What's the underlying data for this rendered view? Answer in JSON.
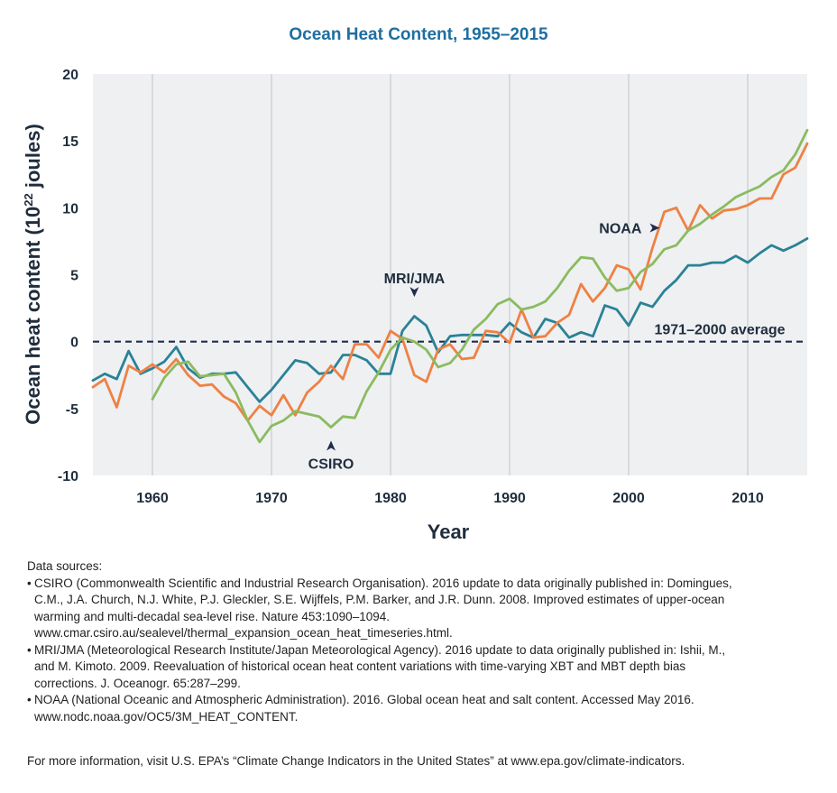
{
  "chart_data": {
    "type": "line",
    "title": "Ocean Heat Content, 1955–2015",
    "xlabel": "Year",
    "ylabel_main": "Ocean heat content (10",
    "ylabel_sup": "22",
    "ylabel_tail": " joules)",
    "xlim": [
      1955,
      2015
    ],
    "ylim": [
      -10,
      20
    ],
    "x_ticks": [
      1960,
      1970,
      1980,
      1990,
      2000,
      2010
    ],
    "y_ticks": [
      -10,
      -5,
      0,
      5,
      10,
      15,
      20
    ],
    "grid": "vertical",
    "reference_line": {
      "value": 0,
      "label": "1971–2000 average"
    },
    "annotations": [
      {
        "text": "NOAA",
        "arrow": "right",
        "x": 2002,
        "y": 8.5
      },
      {
        "text": "MRI/JMA",
        "arrow": "down",
        "x": 1982,
        "y": 3
      },
      {
        "text": "CSIRO",
        "arrow": "up",
        "x": 1975,
        "y": -7
      }
    ],
    "series": [
      {
        "name": "MRI/JMA",
        "color": "#2a8296",
        "x": [
          1955,
          1956,
          1957,
          1958,
          1959,
          1960,
          1961,
          1962,
          1963,
          1964,
          1965,
          1966,
          1967,
          1968,
          1969,
          1970,
          1971,
          1972,
          1973,
          1974,
          1975,
          1976,
          1977,
          1978,
          1979,
          1980,
          1981,
          1982,
          1983,
          1984,
          1985,
          1986,
          1987,
          1988,
          1989,
          1990,
          1991,
          1992,
          1993,
          1994,
          1995,
          1996,
          1997,
          1998,
          1999,
          2000,
          2001,
          2002,
          2003,
          2004,
          2005,
          2006,
          2007,
          2008,
          2009,
          2010,
          2011,
          2012,
          2013,
          2014,
          2015
        ],
        "values": [
          -2.9,
          -2.4,
          -2.8,
          -0.7,
          -2.4,
          -2.0,
          -1.5,
          -0.4,
          -2.0,
          -2.7,
          -2.4,
          -2.4,
          -2.3,
          -3.4,
          -4.5,
          -3.6,
          -2.5,
          -1.4,
          -1.6,
          -2.4,
          -2.3,
          -1.0,
          -1.0,
          -1.4,
          -2.4,
          -2.4,
          0.8,
          1.9,
          1.2,
          -0.8,
          0.4,
          0.5,
          0.5,
          0.5,
          0.4,
          1.4,
          0.7,
          0.3,
          1.7,
          1.4,
          0.3,
          0.7,
          0.4,
          2.7,
          2.4,
          1.2,
          2.9,
          2.6,
          3.8,
          4.6,
          5.7,
          5.7,
          5.9,
          5.9,
          6.4,
          5.9,
          6.6,
          7.2,
          6.8,
          7.2,
          7.7
        ]
      },
      {
        "name": "NOAA",
        "color": "#ee8143",
        "x": [
          1955,
          1956,
          1957,
          1958,
          1959,
          1960,
          1961,
          1962,
          1963,
          1964,
          1965,
          1966,
          1967,
          1968,
          1969,
          1970,
          1971,
          1972,
          1973,
          1974,
          1975,
          1976,
          1977,
          1978,
          1979,
          1980,
          1981,
          1982,
          1983,
          1984,
          1985,
          1986,
          1987,
          1988,
          1989,
          1990,
          1991,
          1992,
          1993,
          1994,
          1995,
          1996,
          1997,
          1998,
          1999,
          2000,
          2001,
          2002,
          2003,
          2004,
          2005,
          2006,
          2007,
          2008,
          2009,
          2010,
          2011,
          2012,
          2013,
          2014,
          2015
        ],
        "values": [
          -3.4,
          -2.8,
          -4.9,
          -1.8,
          -2.3,
          -1.7,
          -2.3,
          -1.3,
          -2.5,
          -3.3,
          -3.2,
          -4.1,
          -4.6,
          -5.9,
          -4.8,
          -5.5,
          -4.0,
          -5.5,
          -3.8,
          -3.0,
          -1.8,
          -2.8,
          -0.2,
          -0.2,
          -1.2,
          0.8,
          0.2,
          -2.5,
          -3.0,
          -0.6,
          -0.2,
          -1.3,
          -1.2,
          0.8,
          0.7,
          -0.1,
          2.4,
          0.3,
          0.4,
          1.4,
          2.0,
          4.3,
          3.0,
          4.0,
          5.7,
          5.4,
          3.9,
          7.0,
          9.7,
          10.0,
          8.3,
          10.2,
          9.2,
          9.8,
          9.9,
          10.2,
          10.7,
          10.7,
          12.5,
          13.0,
          14.8
        ]
      },
      {
        "name": "CSIRO",
        "color": "#8bbb5f",
        "x": [
          1960,
          1961,
          1962,
          1963,
          1964,
          1965,
          1966,
          1967,
          1968,
          1969,
          1970,
          1971,
          1972,
          1973,
          1974,
          1975,
          1976,
          1977,
          1978,
          1979,
          1980,
          1981,
          1982,
          1983,
          1984,
          1985,
          1986,
          1987,
          1988,
          1989,
          1990,
          1991,
          1992,
          1993,
          1994,
          1995,
          1996,
          1997,
          1998,
          1999,
          2000,
          2001,
          2002,
          2003,
          2004,
          2005,
          2006,
          2007,
          2008,
          2009,
          2010,
          2011,
          2012,
          2013,
          2014,
          2015
        ],
        "values": [
          -4.3,
          -2.7,
          -1.7,
          -1.5,
          -2.6,
          -2.5,
          -2.4,
          -3.8,
          -5.9,
          -7.5,
          -6.3,
          -5.9,
          -5.2,
          -5.4,
          -5.6,
          -6.4,
          -5.6,
          -5.7,
          -3.7,
          -2.3,
          -0.6,
          0.3,
          0.0,
          -0.6,
          -1.9,
          -1.6,
          -0.6,
          0.9,
          1.7,
          2.8,
          3.2,
          2.4,
          2.6,
          3.0,
          4.0,
          5.3,
          6.3,
          6.2,
          4.8,
          3.8,
          4.0,
          5.2,
          5.8,
          6.9,
          7.2,
          8.3,
          8.8,
          9.5,
          10.1,
          10.8,
          11.2,
          11.6,
          12.3,
          12.8,
          14.0,
          15.8
        ]
      }
    ]
  },
  "sources": {
    "heading": "Data sources:",
    "bullet": "•",
    "items": [
      {
        "line1": "CSIRO (Commonwealth Scientific and Industrial Research Organisation). 2016 update to data originally published in: Domingues,",
        "line2": "C.M., J.A. Church, N.J. White, P.J. Gleckler, S.E. Wijffels, P.M. Barker, and J.R. Dunn. 2008. Improved estimates of upper-ocean",
        "line3": "warming and multi-decadal sea-level rise. Nature 453:1090–1094.",
        "line4": "www.cmar.csiro.au/sealevel/thermal_expansion_ocean_heat_timeseries.html."
      },
      {
        "line1": "MRI/JMA (Meteorological Research Institute/Japan Meteorological Agency). 2016 update to data originally published in: Ishii, M.,",
        "line2": "and M. Kimoto. 2009. Reevaluation of historical ocean heat content variations with time-varying XBT and MBT depth bias",
        "line3": "corrections. J. Oceanogr. 65:287–299."
      },
      {
        "line1": "NOAA (National Oceanic and Atmospheric Administration). 2016. Global ocean heat and salt content. Accessed May 2016.",
        "line2": "www.nodc.noaa.gov/OC5/3M_HEAT_CONTENT."
      }
    ]
  },
  "footer": {
    "note": "For more information, visit U.S. EPA’s “Climate Change Indicators in the United States” at www.epa.gov/climate-indicators."
  }
}
